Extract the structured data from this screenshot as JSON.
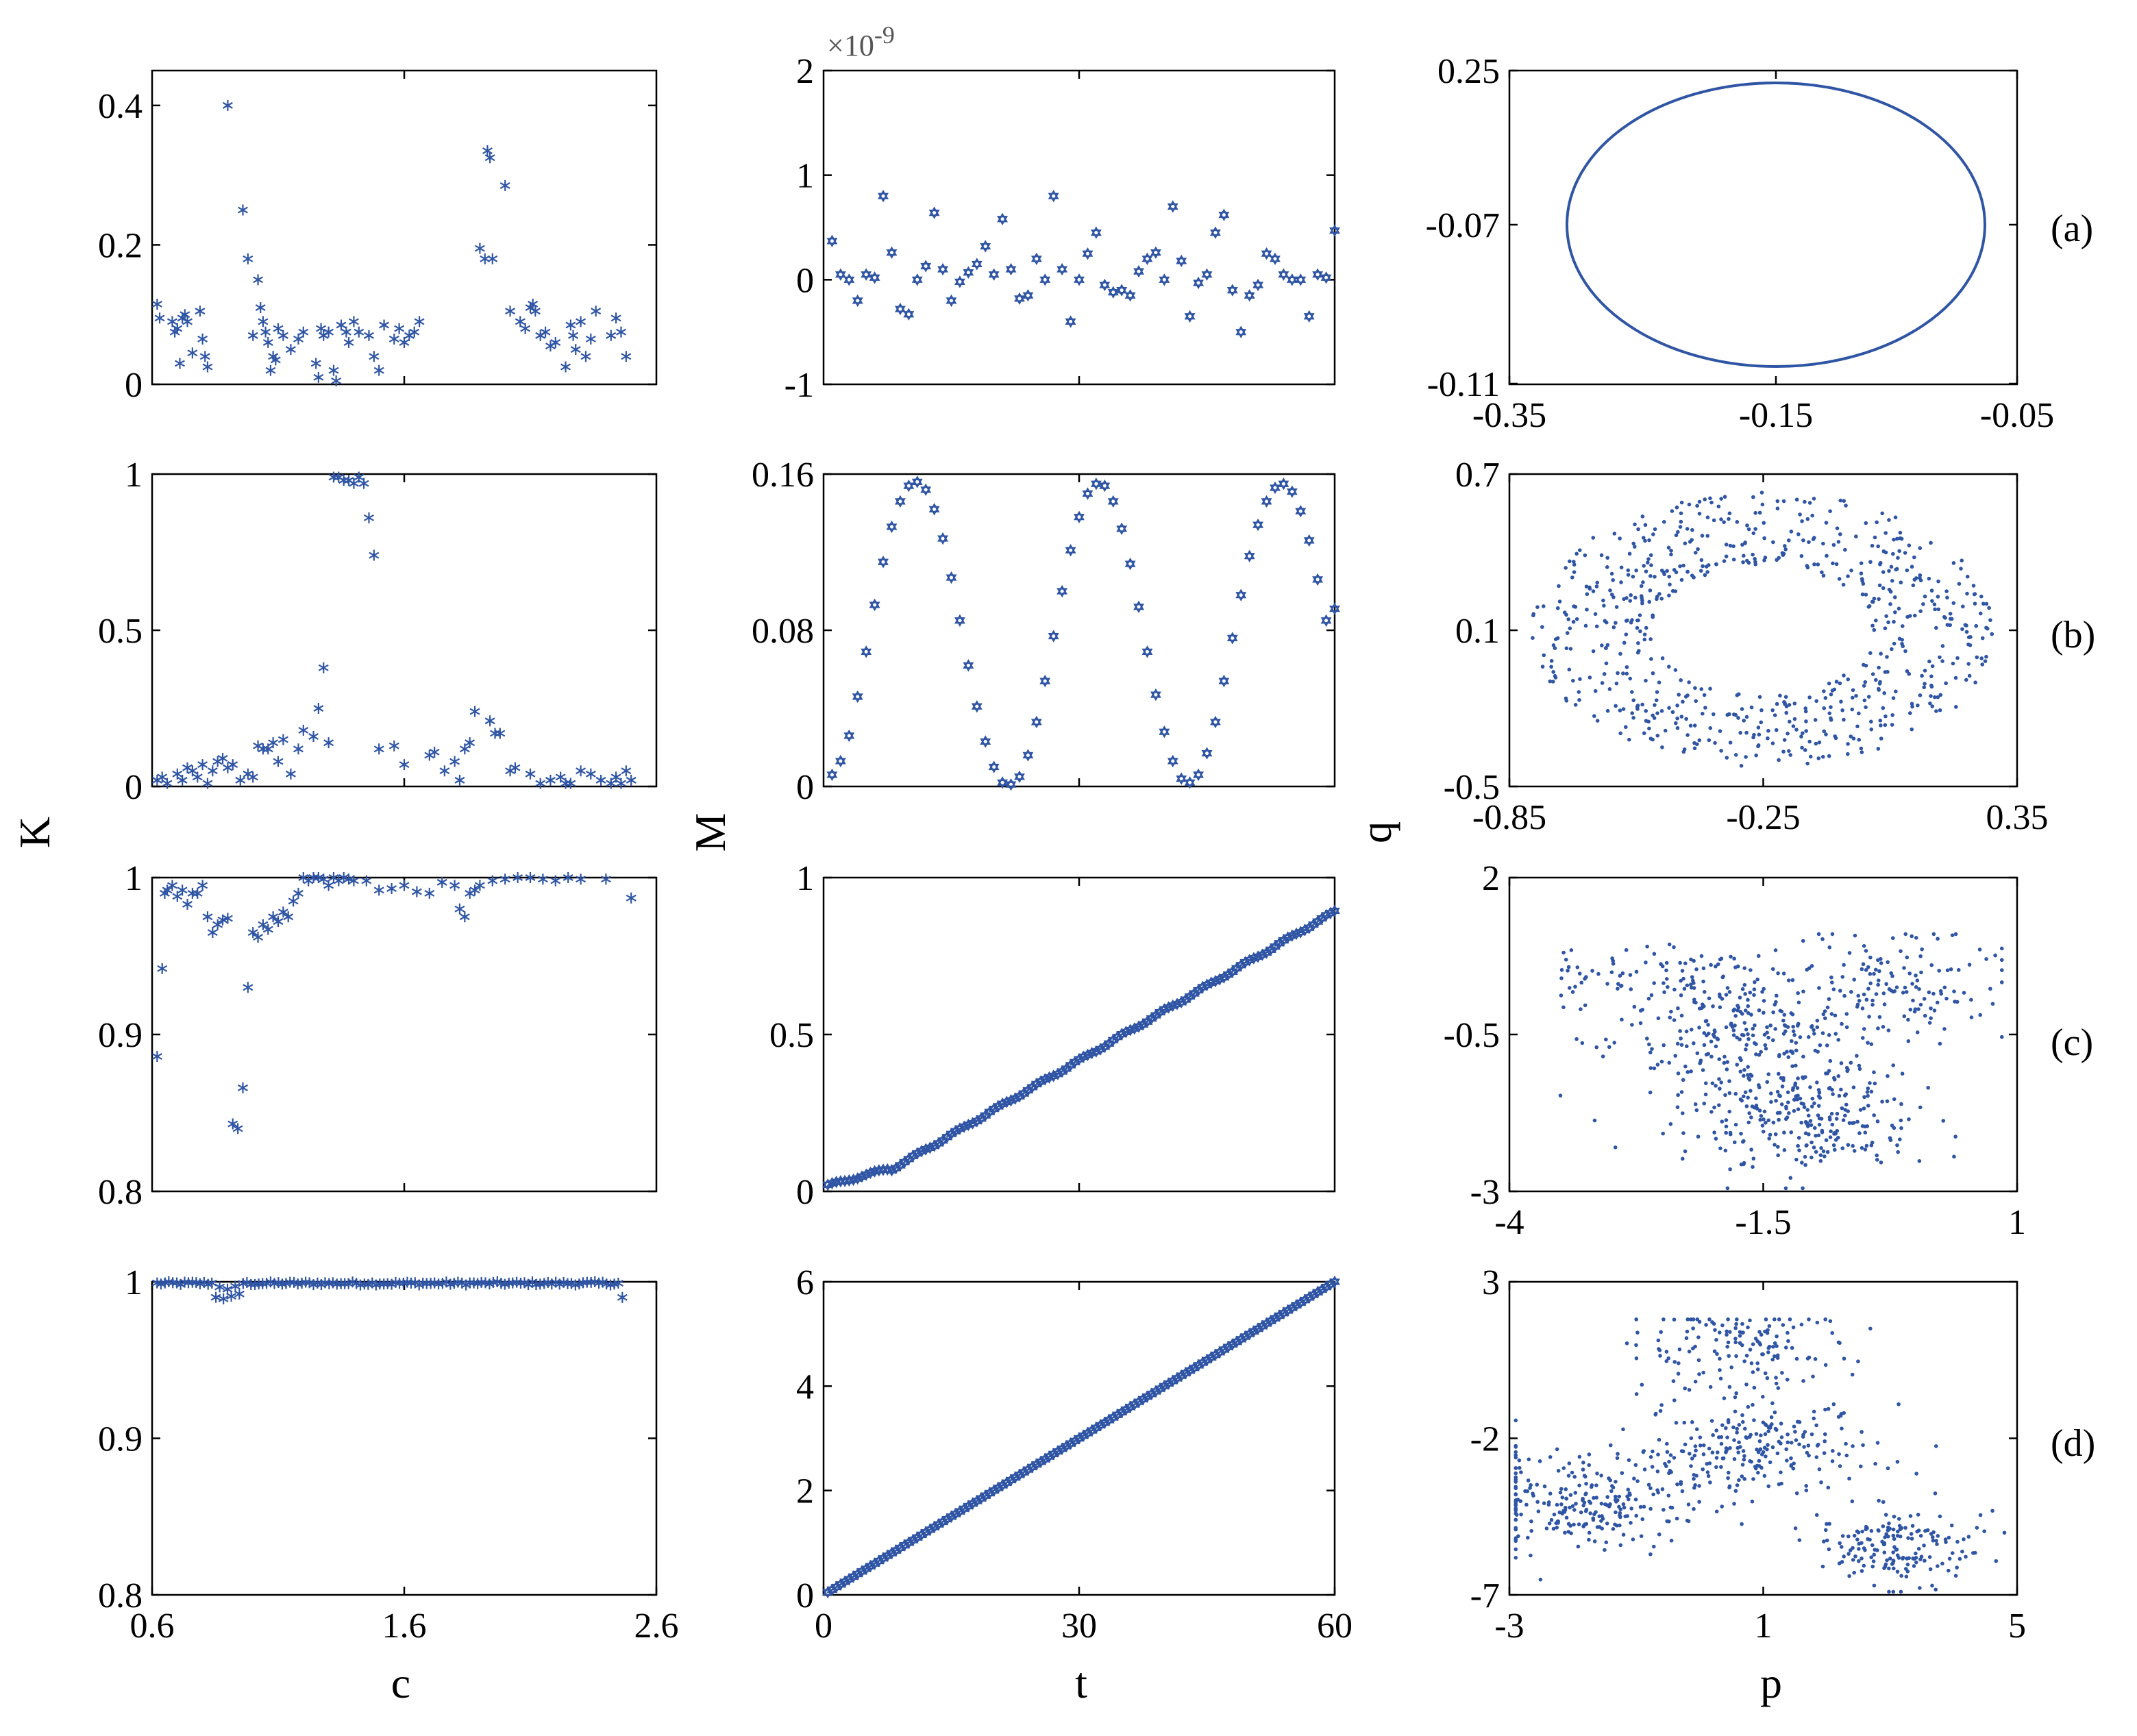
{
  "colors": {
    "marker": "#2F55A4",
    "axis": "#000000"
  },
  "axis_labels": {
    "col1_y": "K",
    "col1_x": "c",
    "col2_y": "M",
    "col2_x": "t",
    "col3_y": "q",
    "col3_x": "p"
  },
  "panel_labels": [
    "(a)",
    "(b)",
    "(c)",
    "(d)"
  ],
  "chart_data": [
    {
      "id": "Ka",
      "type": "scatter",
      "marker": "asterisk",
      "xlim": [
        0.6,
        2.6
      ],
      "ylim": [
        0,
        0.45
      ],
      "xticks": [],
      "yticks": [
        0,
        0.2,
        0.4
      ],
      "yticklabels": [
        "0",
        "0.2",
        "0.4"
      ],
      "x": [
        0.62,
        0.63,
        0.68,
        0.69,
        0.7,
        0.71,
        0.72,
        0.73,
        0.74,
        0.76,
        0.79,
        0.8,
        0.81,
        0.82,
        0.9,
        0.96,
        0.98,
        1.0,
        1.02,
        1.03,
        1.04,
        1.05,
        1.06,
        1.07,
        1.08,
        1.09,
        1.1,
        1.12,
        1.15,
        1.18,
        1.2,
        1.25,
        1.26,
        1.27,
        1.28,
        1.3,
        1.32,
        1.33,
        1.35,
        1.37,
        1.38,
        1.4,
        1.42,
        1.46,
        1.48,
        1.5,
        1.52,
        1.56,
        1.58,
        1.6,
        1.62,
        1.64,
        1.66,
        1.9,
        1.92,
        1.93,
        1.94,
        1.95,
        2.0,
        2.02,
        2.06,
        2.08,
        2.1,
        2.11,
        2.12,
        2.14,
        2.16,
        2.18,
        2.2,
        2.24,
        2.26,
        2.27,
        2.28,
        2.3,
        2.32,
        2.34,
        2.36,
        2.42,
        2.44,
        2.46,
        2.48
      ],
      "y": [
        0.115,
        0.095,
        0.09,
        0.075,
        0.08,
        0.03,
        0.095,
        0.1,
        0.09,
        0.045,
        0.105,
        0.065,
        0.04,
        0.025,
        0.4,
        0.25,
        0.18,
        0.07,
        0.15,
        0.11,
        0.09,
        0.075,
        0.06,
        0.02,
        0.04,
        0.035,
        0.08,
        0.07,
        0.05,
        0.065,
        0.075,
        0.03,
        0.01,
        0.08,
        0.07,
        0.075,
        0.02,
        0.005,
        0.085,
        0.075,
        0.06,
        0.09,
        0.075,
        0.07,
        0.04,
        0.02,
        0.085,
        0.065,
        0.08,
        0.06,
        0.07,
        0.075,
        0.09,
        0.195,
        0.18,
        0.335,
        0.325,
        0.18,
        0.285,
        0.105,
        0.09,
        0.08,
        0.11,
        0.115,
        0.105,
        0.07,
        0.075,
        0.055,
        0.06,
        0.025,
        0.085,
        0.07,
        0.05,
        0.09,
        0.04,
        0.065,
        0.105,
        0.07,
        0.095,
        0.075,
        0.04
      ]
    },
    {
      "id": "Ma",
      "type": "scatter",
      "marker": "hexagram",
      "xlim": [
        0,
        60
      ],
      "ylim": [
        -1,
        2
      ],
      "xticks": [],
      "yticks": [
        -1,
        0,
        1,
        2
      ],
      "yticklabels": [
        "-1",
        "0",
        "1",
        "2"
      ],
      "exponent": "×10-9",
      "x": [
        1,
        2,
        3,
        4,
        5,
        6,
        7,
        8,
        9,
        10,
        11,
        12,
        13,
        14,
        15,
        16,
        17,
        18,
        19,
        20,
        21,
        22,
        23,
        24,
        25,
        26,
        27,
        28,
        29,
        30,
        31,
        32,
        33,
        34,
        35,
        36,
        37,
        38,
        39,
        40,
        41,
        42,
        43,
        44,
        45,
        46,
        47,
        48,
        49,
        50,
        51,
        52,
        53,
        54,
        55,
        56,
        57,
        58,
        59,
        60
      ],
      "y": [
        0.37,
        0.05,
        0.0,
        -0.2,
        0.05,
        0.02,
        0.8,
        0.26,
        -0.28,
        -0.33,
        0.0,
        0.13,
        0.64,
        0.1,
        -0.2,
        -0.02,
        0.07,
        0.15,
        0.32,
        0.05,
        0.58,
        0.1,
        -0.18,
        -0.15,
        0.2,
        0.0,
        0.8,
        0.1,
        -0.4,
        0.0,
        0.25,
        0.45,
        -0.05,
        -0.12,
        -0.1,
        -0.15,
        0.08,
        0.2,
        0.26,
        0.0,
        0.7,
        0.18,
        -0.35,
        -0.03,
        0.05,
        0.45,
        0.62,
        -0.1,
        -0.5,
        -0.15,
        -0.05,
        0.25,
        0.2,
        0.05,
        0.0,
        0.0,
        -0.35,
        0.05,
        0.02,
        0.47
      ]
    },
    {
      "id": "Kb",
      "type": "scatter",
      "marker": "asterisk",
      "xlim": [
        0.6,
        2.6
      ],
      "ylim": [
        0,
        1
      ],
      "xticks": [],
      "yticks": [
        0,
        0.5,
        1
      ],
      "yticklabels": [
        "0",
        "0.5",
        "1"
      ],
      "x": [
        0.62,
        0.64,
        0.66,
        0.7,
        0.72,
        0.74,
        0.76,
        0.78,
        0.8,
        0.82,
        0.84,
        0.86,
        0.88,
        0.9,
        0.92,
        0.95,
        0.98,
        1.0,
        1.02,
        1.04,
        1.06,
        1.08,
        1.1,
        1.12,
        1.15,
        1.18,
        1.2,
        1.24,
        1.26,
        1.28,
        1.3,
        1.32,
        1.34,
        1.36,
        1.38,
        1.4,
        1.42,
        1.44,
        1.46,
        1.48,
        1.5,
        1.56,
        1.6,
        1.7,
        1.72,
        1.76,
        1.8,
        1.82,
        1.84,
        1.86,
        1.88,
        1.94,
        1.96,
        1.98,
        2.02,
        2.04,
        2.1,
        2.14,
        2.18,
        2.22,
        2.24,
        2.26,
        2.3,
        2.34,
        2.38,
        2.42,
        2.44,
        2.46,
        2.48,
        2.5
      ],
      "y": [
        0.02,
        0.03,
        0.01,
        0.04,
        0.02,
        0.06,
        0.05,
        0.03,
        0.07,
        0.01,
        0.05,
        0.08,
        0.09,
        0.06,
        0.07,
        0.02,
        0.04,
        0.03,
        0.13,
        0.12,
        0.12,
        0.14,
        0.08,
        0.15,
        0.04,
        0.12,
        0.18,
        0.16,
        0.25,
        0.38,
        0.14,
        0.99,
        0.99,
        0.98,
        0.98,
        0.97,
        0.99,
        0.97,
        0.86,
        0.74,
        0.12,
        0.13,
        0.07,
        0.1,
        0.11,
        0.05,
        0.08,
        0.02,
        0.12,
        0.14,
        0.24,
        0.21,
        0.17,
        0.17,
        0.05,
        0.06,
        0.04,
        0.01,
        0.02,
        0.03,
        0.01,
        0.01,
        0.05,
        0.04,
        0.02,
        0.01,
        0.03,
        0.01,
        0.05,
        0.02
      ]
    },
    {
      "id": "Mb",
      "type": "scatter",
      "marker": "hexagram",
      "xlim": [
        0,
        60
      ],
      "ylim": [
        0,
        0.16
      ],
      "xticks": [],
      "yticks": [
        0,
        0.08,
        0.16
      ],
      "yticklabels": [
        "0",
        "0.08",
        "0.16"
      ],
      "x": [
        1,
        2,
        3,
        4,
        5,
        6,
        7,
        8,
        9,
        10,
        11,
        12,
        13,
        14,
        15,
        16,
        17,
        18,
        19,
        20,
        21,
        22,
        23,
        24,
        25,
        26,
        27,
        28,
        29,
        30,
        31,
        32,
        33,
        34,
        35,
        36,
        37,
        38,
        39,
        40,
        41,
        42,
        43,
        44,
        45,
        46,
        47,
        48,
        49,
        50,
        51,
        52,
        53,
        54,
        55,
        56,
        57,
        58,
        59,
        60
      ],
      "y": [
        0.006,
        0.013,
        0.026,
        0.046,
        0.069,
        0.093,
        0.115,
        0.133,
        0.146,
        0.154,
        0.156,
        0.152,
        0.142,
        0.127,
        0.107,
        0.085,
        0.062,
        0.041,
        0.023,
        0.01,
        0.002,
        0.001,
        0.005,
        0.016,
        0.033,
        0.054,
        0.077,
        0.1,
        0.121,
        0.138,
        0.15,
        0.155,
        0.154,
        0.146,
        0.132,
        0.114,
        0.092,
        0.069,
        0.047,
        0.028,
        0.013,
        0.004,
        0.002,
        0.006,
        0.017,
        0.033,
        0.054,
        0.076,
        0.098,
        0.118,
        0.134,
        0.146,
        0.153,
        0.155,
        0.151,
        0.141,
        0.126,
        0.106,
        0.085,
        0.091
      ]
    },
    {
      "id": "Kc",
      "type": "scatter",
      "marker": "asterisk",
      "xlim": [
        0.6,
        2.6
      ],
      "ylim": [
        0.8,
        1
      ],
      "xticks": [],
      "yticks": [
        0.8,
        0.9,
        1
      ],
      "yticklabels": [
        "0.8",
        "0.9",
        "1"
      ],
      "x": [
        0.62,
        0.64,
        0.65,
        0.66,
        0.68,
        0.7,
        0.72,
        0.74,
        0.76,
        0.78,
        0.8,
        0.82,
        0.84,
        0.86,
        0.88,
        0.9,
        0.92,
        0.94,
        0.96,
        0.98,
        1.0,
        1.02,
        1.04,
        1.06,
        1.08,
        1.1,
        1.12,
        1.14,
        1.16,
        1.18,
        1.2,
        1.22,
        1.24,
        1.26,
        1.28,
        1.3,
        1.32,
        1.34,
        1.36,
        1.38,
        1.4,
        1.45,
        1.5,
        1.55,
        1.6,
        1.65,
        1.7,
        1.75,
        1.8,
        1.82,
        1.84,
        1.86,
        1.88,
        1.9,
        1.95,
        2.0,
        2.05,
        2.1,
        2.15,
        2.2,
        2.25,
        2.3,
        2.4,
        2.5
      ],
      "y": [
        0.886,
        0.942,
        0.99,
        0.992,
        0.995,
        0.988,
        0.992,
        0.983,
        0.99,
        0.99,
        0.995,
        0.975,
        0.965,
        0.97,
        0.973,
        0.974,
        0.843,
        0.84,
        0.866,
        0.93,
        0.965,
        0.962,
        0.97,
        0.967,
        0.975,
        0.972,
        0.978,
        0.975,
        0.985,
        0.99,
        1.0,
        0.998,
        1.0,
        1.0,
        0.999,
        0.995,
        1.0,
        0.998,
        1.0,
        0.999,
        0.998,
        0.998,
        0.992,
        0.993,
        0.995,
        0.991,
        0.99,
        0.997,
        0.995,
        0.98,
        0.975,
        0.99,
        0.992,
        0.995,
        0.998,
        0.999,
        1.0,
        1.0,
        0.999,
        0.998,
        1.0,
        0.999,
        0.999,
        0.987
      ]
    },
    {
      "id": "Mc",
      "type": "scatter",
      "marker": "hexagram",
      "xlim": [
        0,
        60
      ],
      "ylim": [
        0,
        1
      ],
      "xticks": [],
      "yticks": [
        0,
        0.5,
        1
      ],
      "yticklabels": [
        "0",
        "0.5",
        "1"
      ],
      "n": 120,
      "trend": "rising from 0.01 to 0.9"
    },
    {
      "id": "Kd",
      "type": "scatter",
      "marker": "asterisk",
      "xlim": [
        0.6,
        2.6
      ],
      "ylim": [
        0.8,
        1
      ],
      "xticks": [
        0.6,
        1.6,
        2.6
      ],
      "xticklabels": [
        "0.6",
        "1.6",
        "2.6"
      ],
      "yticks": [
        0.8,
        0.9,
        1
      ],
      "yticklabels": [
        "0.8",
        "0.9",
        "1"
      ],
      "n": 120,
      "trend": "near 1 with dips to 0.985"
    },
    {
      "id": "Md",
      "type": "scatter",
      "marker": "hexagram",
      "xlim": [
        0,
        60
      ],
      "ylim": [
        0,
        6
      ],
      "xticks": [
        0,
        30,
        60
      ],
      "xticklabels": [
        "0",
        "30",
        "60"
      ],
      "yticks": [
        0,
        2,
        4,
        6
      ],
      "yticklabels": [
        "0",
        "2",
        "4",
        "6"
      ],
      "n": 120,
      "trend": "linear from 0.1 to 6"
    },
    {
      "id": "Pa",
      "type": "line",
      "xlim": [
        -0.35,
        -0.05
      ],
      "ylim": [
        -0.11,
        0.25
      ],
      "xticks": [
        -0.35,
        -0.15,
        -0.05
      ],
      "xticklabels": [
        "-0.35",
        "-0.15",
        "-0.05"
      ],
      "yticks": [
        -0.11,
        -0.07,
        0.25
      ],
      "yticklabels": [
        "-0.11",
        "-0.07",
        "0.25"
      ],
      "curve": "closed ellipse"
    },
    {
      "id": "Pb",
      "type": "scatter",
      "marker": "dot",
      "xlim": [
        -0.85,
        0.35
      ],
      "ylim": [
        -0.5,
        0.7
      ],
      "xticks": [
        -0.85,
        -0.25,
        0.35
      ],
      "xticklabels": [
        "-0.85",
        "-0.25",
        "0.35"
      ],
      "yticks": [
        -0.5,
        0.1,
        0.7
      ],
      "yticklabels": [
        "-0.5",
        "0.1",
        "0.7"
      ],
      "cloud": "annulus"
    },
    {
      "id": "Pc",
      "type": "scatter",
      "marker": "dot",
      "xlim": [
        -4,
        1
      ],
      "ylim": [
        -3,
        2
      ],
      "xticks": [
        -4,
        -1.5,
        1
      ],
      "xticklabels": [
        "-4",
        "-1.5",
        "1"
      ],
      "yticks": [
        -3,
        -0.5,
        2
      ],
      "yticklabels": [
        "-3",
        "-0.5",
        "2"
      ],
      "cloud": "chaotic"
    },
    {
      "id": "Pd",
      "type": "scatter",
      "marker": "dot",
      "xlim": [
        -3,
        5
      ],
      "ylim": [
        -7,
        3
      ],
      "xticks": [
        -3,
        1,
        5
      ],
      "xticklabels": [
        "-3",
        "1",
        "5"
      ],
      "yticks": [
        -7,
        -2,
        3
      ],
      "yticklabels": [
        "-7",
        "-2",
        "3"
      ],
      "cloud": "chaotic"
    }
  ]
}
